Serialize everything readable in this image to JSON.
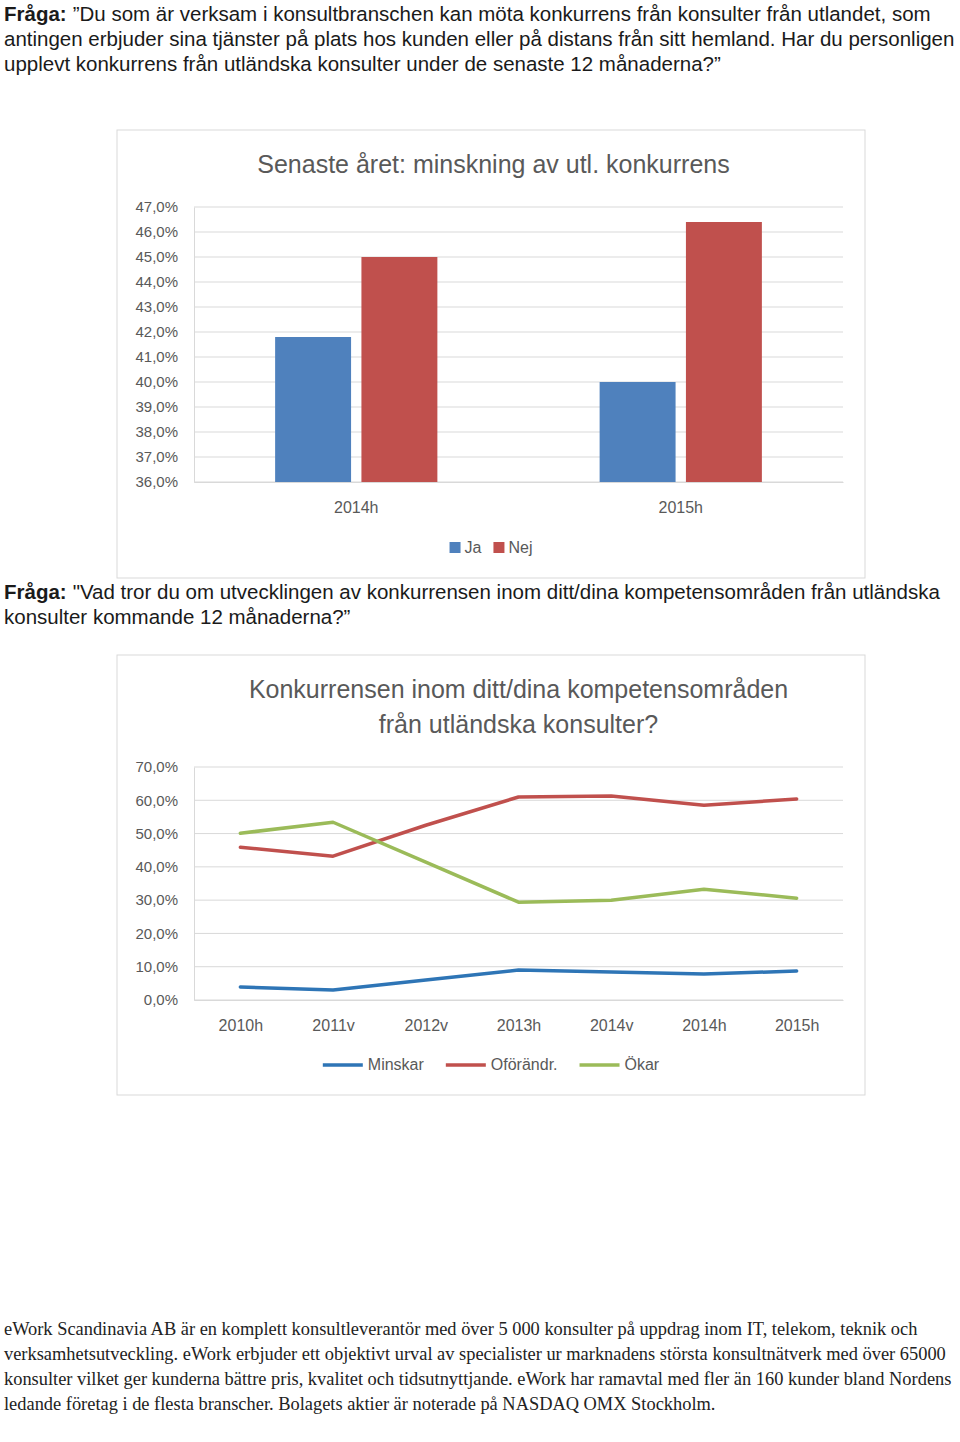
{
  "question_1": {
    "label": "Fråga:",
    "text": "”Du som är verksam i konsultbranschen kan möta konkurrens från konsulter från utlandet, som antingen erbjuder sina tjänster på plats hos kunden eller på distans från sitt hemland. Har du personligen upplevt konkurrens från utländska konsulter under de senaste 12 månaderna?”"
  },
  "question_2": {
    "label": "Fråga:",
    "text": "\"Vad tror du om utvecklingen av konkurrensen inom ditt/dina kompetensområden från utländska konsulter kommande 12 månaderna?”"
  },
  "chart_data": [
    {
      "type": "bar",
      "title": "Senaste året: minskning av utl. konkurrens",
      "categories": [
        "2014h",
        "2015h"
      ],
      "series": [
        {
          "name": "Ja",
          "color": "#4f81bd",
          "values": [
            41.8,
            40.0
          ]
        },
        {
          "name": "Nej",
          "color": "#c0504d",
          "values": [
            45.0,
            46.4
          ]
        }
      ],
      "ylim": [
        36,
        47
      ],
      "yticks": [
        {
          "value": 36,
          "label": "36,0%"
        },
        {
          "value": 37,
          "label": "37,0%"
        },
        {
          "value": 38,
          "label": "38,0%"
        },
        {
          "value": 39,
          "label": "39,0%"
        },
        {
          "value": 40,
          "label": "40,0%"
        },
        {
          "value": 41,
          "label": "41,0%"
        },
        {
          "value": 42,
          "label": "42,0%"
        },
        {
          "value": 43,
          "label": "43,0%"
        },
        {
          "value": 44,
          "label": "44,0%"
        },
        {
          "value": 45,
          "label": "45,0%"
        },
        {
          "value": 46,
          "label": "46,0%"
        },
        {
          "value": 47,
          "label": "47,0%"
        }
      ],
      "grid": true,
      "legend": "bottom"
    },
    {
      "type": "line",
      "title": "Konkurrensen inom ditt/dina kompetensområden\nfrån utländska konsulter?",
      "categories": [
        "2010h",
        "2011v",
        "2012v",
        "2013h",
        "2014v",
        "2014h",
        "2015h"
      ],
      "series": [
        {
          "name": "Minskar",
          "color": "#2e75b6",
          "values": [
            3.9,
            3.0,
            6.0,
            9.0,
            8.4,
            7.8,
            8.7
          ]
        },
        {
          "name": "Oförändr.",
          "color": "#c0504d",
          "values": [
            45.9,
            43.2,
            52.5,
            61.0,
            61.3,
            58.5,
            60.4
          ]
        },
        {
          "name": "Ökar",
          "color": "#9bbb59",
          "values": [
            50.1,
            53.4,
            41.4,
            29.4,
            30.0,
            33.3,
            30.6
          ]
        }
      ],
      "ylim": [
        0,
        70
      ],
      "yticks": [
        {
          "value": 0,
          "label": "0,0%"
        },
        {
          "value": 10,
          "label": "10,0%"
        },
        {
          "value": 20,
          "label": "20,0%"
        },
        {
          "value": 30,
          "label": "30,0%"
        },
        {
          "value": 40,
          "label": "40,0%"
        },
        {
          "value": 50,
          "label": "50,0%"
        },
        {
          "value": 60,
          "label": "60,0%"
        },
        {
          "value": 70,
          "label": "70,0%"
        }
      ],
      "grid": true,
      "legend": "bottom"
    }
  ],
  "footer": "eWork Scandinavia AB är en komplett konsultleverantör med över 5 000 konsulter på uppdrag inom IT, telekom, teknik och verksamhetsutveckling. eWork erbjuder ett objektivt urval av specialister ur marknadens största konsultnätverk med över 65000 konsulter vilket ger kunderna bättre pris, kvalitet och tidsutnyttjande. eWork har ramavtal med fler än 160 kunder bland Nordens ledande företag i de flesta branscher. Bolagets aktier är noterade på NASDAQ OMX Stockholm."
}
